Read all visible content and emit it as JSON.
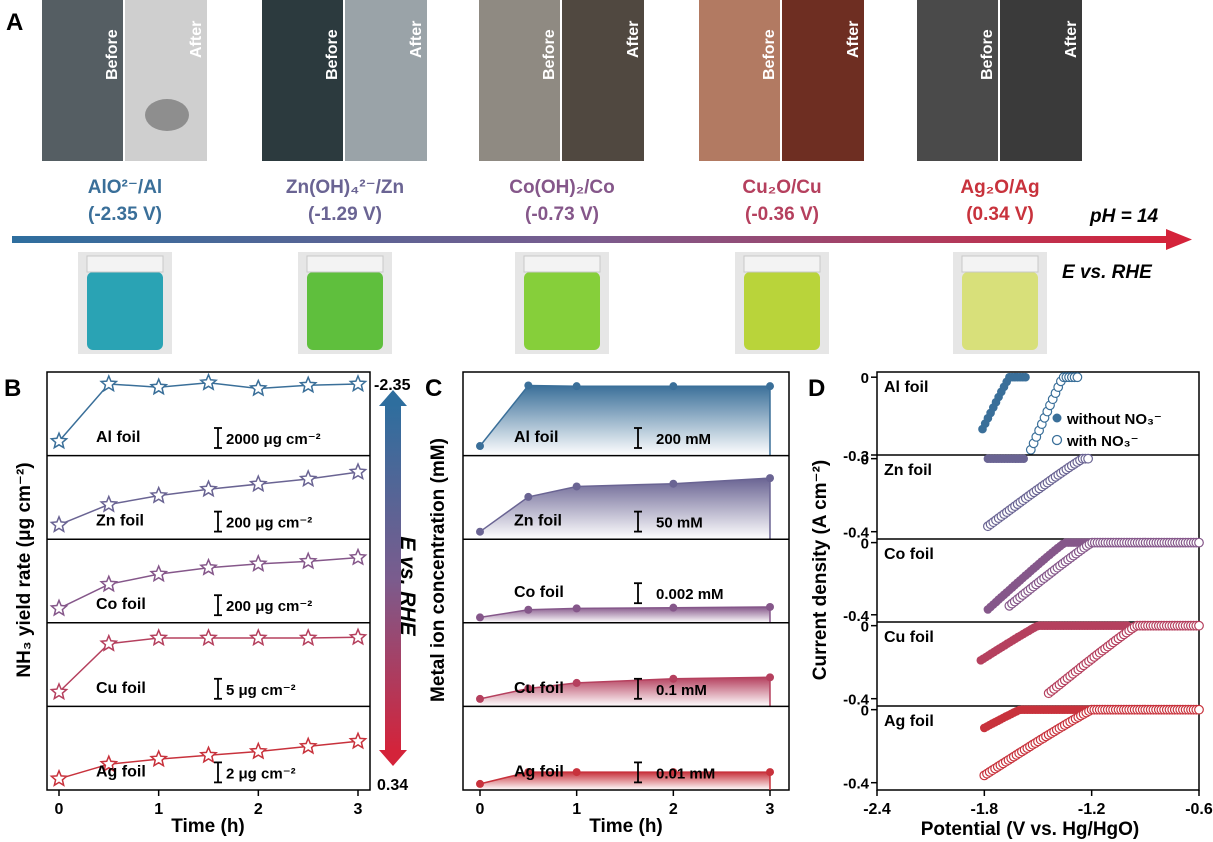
{
  "panel_a": {
    "letter": "A",
    "photo_before_label": "Before",
    "photo_after_label": "After",
    "couples": [
      {
        "name": "AlO²⁻/Al",
        "potential": "(-2.35 V)",
        "color": "#3a6f99",
        "before_color": "#555e63",
        "after_color": "#cfcfcf",
        "solution_color": "#2aa3b4"
      },
      {
        "name": "Zn(OH)₄²⁻/Zn",
        "potential": "(-1.29 V)",
        "color": "#6a6493",
        "before_color": "#2c3a3e",
        "after_color": "#9aa3a8",
        "solution_color": "#5fbf3d"
      },
      {
        "name": "Co(OH)₂/Co",
        "potential": "(-0.73 V)",
        "color": "#85578a",
        "before_color": "#8f8a82",
        "after_color": "#504840",
        "solution_color": "#86cf3a"
      },
      {
        "name": "Cu₂O/Cu",
        "potential": "(-0.36 V)",
        "color": "#b5405e",
        "before_color": "#b27a62",
        "after_color": "#6e2e22",
        "solution_color": "#b9d43a"
      },
      {
        "name": "Ag₂O/Ag",
        "potential": "(0.34 V)",
        "color": "#c8323c",
        "before_color": "#4a4a4a",
        "after_color": "#3a3a3a",
        "solution_color": "#d8e07a"
      }
    ],
    "arrow_label_ph": "pH = 14",
    "arrow_label_e": "E vs. RHE",
    "arrow_color_start": "#2e6e9e",
    "arrow_color_end": "#d4233a"
  },
  "panel_b": {
    "letter": "B",
    "ylabel": "NH₃ yield rate (μg cm⁻²)",
    "xlabel": "Time (h)",
    "xticks": [
      "0",
      "1",
      "2",
      "3"
    ],
    "side_arrow_label": "E vs. RHE",
    "side_top_value": "-2.35",
    "side_bottom_value": "0.34"
  },
  "panel_c": {
    "letter": "C",
    "ylabel": "Metal ion concentration (mM)",
    "xlabel": "Time (h)",
    "xticks": [
      "0",
      "1",
      "2",
      "3"
    ]
  },
  "panel_d": {
    "letter": "D",
    "ylabel": "Current density (A cm⁻²)",
    "xlabel": "Potential (V vs. Hg/HgO)",
    "xticks": [
      "-2.4",
      "-1.8",
      "-1.2",
      "-0.6"
    ],
    "legend_without": "without NO₃⁻",
    "legend_with": "with NO₃⁻"
  },
  "chart_data": [
    {
      "type": "line",
      "panel": "B",
      "xlabel": "Time (h)",
      "ylabel": "NH₃ yield rate (μg cm⁻²)",
      "xlim": [
        0,
        3
      ],
      "series": [
        {
          "name": "Al foil",
          "color": "#3a6f99",
          "scale_bar": "2000 μg cm⁻²",
          "x": [
            0,
            0.5,
            1,
            1.5,
            2,
            2.5,
            3
          ],
          "y": [
            0.1,
            1.0,
            0.95,
            1.02,
            0.93,
            0.98,
            1.0
          ]
        },
        {
          "name": "Zn foil",
          "color": "#6a6493",
          "scale_bar": "200 μg cm⁻²",
          "x": [
            0,
            0.5,
            1,
            1.5,
            2,
            2.5,
            3
          ],
          "y": [
            0.1,
            0.42,
            0.56,
            0.66,
            0.74,
            0.82,
            0.93
          ]
        },
        {
          "name": "Co foil",
          "color": "#85578a",
          "scale_bar": "200 μg cm⁻²",
          "x": [
            0,
            0.5,
            1,
            1.5,
            2,
            2.5,
            3
          ],
          "y": [
            0.1,
            0.48,
            0.64,
            0.74,
            0.8,
            0.84,
            0.9
          ]
        },
        {
          "name": "Cu foil",
          "color": "#b5405e",
          "scale_bar": "5 μg cm⁻²",
          "x": [
            0,
            0.5,
            1,
            1.5,
            2,
            2.5,
            3
          ],
          "y": [
            0.1,
            0.86,
            0.95,
            0.95,
            0.95,
            0.95,
            0.96
          ]
        },
        {
          "name": "Ag foil",
          "color": "#c8323c",
          "scale_bar": "2 μg cm⁻²",
          "x": [
            0,
            0.5,
            1,
            1.5,
            2,
            2.5,
            3
          ],
          "y": [
            0.05,
            0.28,
            0.36,
            0.42,
            0.48,
            0.56,
            0.64
          ]
        }
      ]
    },
    {
      "type": "area",
      "panel": "C",
      "xlabel": "Time (h)",
      "ylabel": "Metal ion concentration (mM)",
      "xlim": [
        0,
        3
      ],
      "series": [
        {
          "name": "Al foil",
          "color": "#3a6f99",
          "scale_bar": "200 mM",
          "x": [
            0,
            0.5,
            1,
            2,
            3
          ],
          "y": [
            0.08,
            0.95,
            0.94,
            0.94,
            0.94
          ]
        },
        {
          "name": "Zn foil",
          "color": "#6a6493",
          "scale_bar": "50 mM",
          "x": [
            0,
            0.5,
            1,
            2,
            3
          ],
          "y": [
            0.05,
            0.55,
            0.7,
            0.74,
            0.82
          ]
        },
        {
          "name": "Co foil",
          "color": "#85578a",
          "scale_bar": "0.002 mM",
          "x": [
            0,
            0.5,
            1,
            2,
            3
          ],
          "y": [
            0.02,
            0.13,
            0.15,
            0.16,
            0.17
          ]
        },
        {
          "name": "Cu foil",
          "color": "#b5405e",
          "scale_bar": "0.1 mM",
          "x": [
            0,
            0.5,
            1,
            2,
            3
          ],
          "y": [
            0.05,
            0.2,
            0.28,
            0.34,
            0.36
          ]
        },
        {
          "name": "Ag foil",
          "color": "#c8323c",
          "scale_bar": "0.01 mM",
          "x": [
            0,
            0.5,
            1,
            2,
            3
          ],
          "y": [
            0.03,
            0.2,
            0.2,
            0.2,
            0.2
          ]
        }
      ]
    },
    {
      "type": "scatter",
      "panel": "D",
      "xlabel": "Potential (V vs. Hg/HgO)",
      "ylabel": "Current density (A cm⁻²)",
      "xlim": [
        -2.4,
        -0.6
      ],
      "subplots": [
        {
          "name": "Al foil",
          "color": "#3a6f99",
          "ylim": [
            -0.3,
            0.02
          ],
          "yticks": [
            "0",
            "-0.3"
          ],
          "without": {
            "x_start": -1.81,
            "x_end": -1.57,
            "y_start": -0.2,
            "flat_from": -1.66
          },
          "with": {
            "x_start": -1.54,
            "x_end": -1.28,
            "y_start": -0.28,
            "flat_from": -1.36
          }
        },
        {
          "name": "Zn foil",
          "color": "#6a6493",
          "ylim": [
            -0.44,
            0.02
          ],
          "yticks": [
            "0",
            "-0.4"
          ],
          "without": {
            "x_start": -1.78,
            "x_end": -1.58,
            "y_start": 0.0,
            "flat_from": -1.78
          },
          "with": {
            "x_start": -1.78,
            "x_end": -1.22,
            "y_start": -0.37,
            "flat_from": -1.25
          }
        },
        {
          "name": "Co foil",
          "color": "#85578a",
          "ylim": [
            -0.44,
            0.02
          ],
          "yticks": [
            "0",
            "-0.4"
          ],
          "without": {
            "x_start": -1.78,
            "x_end": -1.18,
            "y_start": -0.37,
            "flat_from": -1.35
          },
          "with": {
            "x_start": -1.66,
            "x_end": -0.6,
            "y_start": -0.35,
            "flat_from": -1.2
          }
        },
        {
          "name": "Cu foil",
          "color": "#b5405e",
          "ylim": [
            -0.44,
            0.02
          ],
          "yticks": [
            "0",
            "-0.4"
          ],
          "without": {
            "x_start": -1.82,
            "x_end": -1.0,
            "y_start": -0.19,
            "flat_from": -1.5
          },
          "with": {
            "x_start": -1.44,
            "x_end": -0.6,
            "y_start": -0.37,
            "flat_from": -0.95
          }
        },
        {
          "name": "Ag foil",
          "color": "#c8323c",
          "ylim": [
            -0.44,
            0.02
          ],
          "yticks": [
            "0",
            "-0.4"
          ],
          "without": {
            "x_start": -1.8,
            "x_end": -0.6,
            "y_start": -0.1,
            "flat_from": -1.6
          },
          "with": {
            "x_start": -1.8,
            "x_end": -0.6,
            "y_start": -0.36,
            "flat_from": -1.2
          }
        }
      ]
    }
  ]
}
